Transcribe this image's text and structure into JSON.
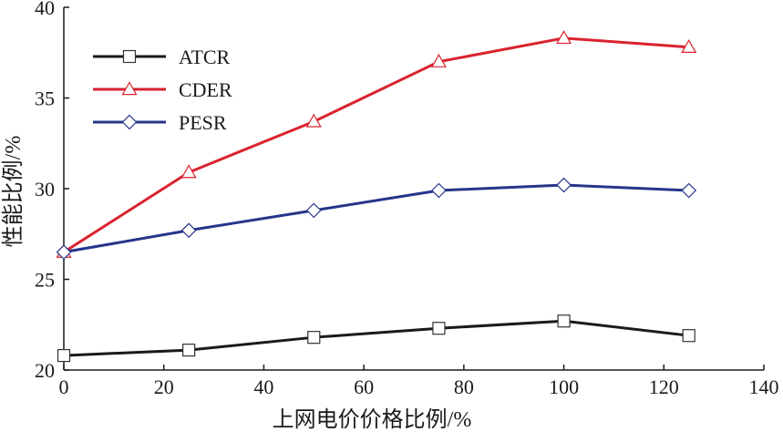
{
  "chart_data": {
    "type": "line",
    "xlabel": "上网电价价格比例/%",
    "ylabel": "性能比例/%",
    "xlim": [
      0,
      140
    ],
    "ylim": [
      20,
      40
    ],
    "xticks": [
      0,
      20,
      40,
      60,
      80,
      100,
      120,
      140
    ],
    "yticks": [
      20,
      25,
      30,
      35,
      40
    ],
    "grid": false,
    "legend_position": "top-left",
    "x": [
      0,
      25,
      50,
      75,
      100,
      125
    ],
    "series": [
      {
        "name": "ATCR",
        "color": "#1a1a1a",
        "marker": "square",
        "values": [
          20.8,
          21.1,
          21.8,
          22.3,
          22.7,
          21.9
        ]
      },
      {
        "name": "CDER",
        "color": "#d9232e",
        "marker": "triangle",
        "values": [
          26.5,
          30.9,
          33.7,
          37.0,
          38.3,
          37.8
        ]
      },
      {
        "name": "PESR",
        "color": "#26358a",
        "marker": "diamond",
        "values": [
          26.5,
          27.7,
          28.8,
          29.9,
          30.2,
          29.9
        ]
      }
    ]
  }
}
